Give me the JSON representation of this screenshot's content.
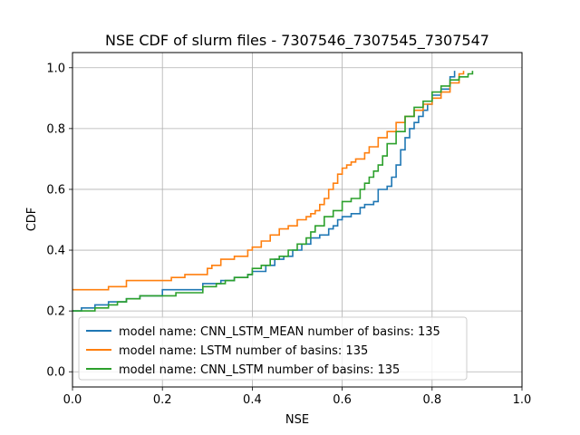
{
  "chart_data": {
    "type": "line",
    "title": "NSE CDF of slurm files - 7307546_7307545_7307547",
    "xlabel": "NSE",
    "ylabel": "CDF",
    "xlim": [
      0.0,
      1.0
    ],
    "ylim": [
      -0.05,
      1.05
    ],
    "xticks": [
      "0.0",
      "0.2",
      "0.4",
      "0.6",
      "0.8",
      "1.0"
    ],
    "yticks": [
      "0.0",
      "0.2",
      "0.4",
      "0.6",
      "0.8",
      "1.0"
    ],
    "grid": true,
    "legend_position": "lower-left",
    "series": [
      {
        "name": "model name: CNN_LSTM_MEAN number of basins: 135",
        "color": "#1f77b4",
        "x": [
          0.0,
          0.02,
          0.05,
          0.08,
          0.12,
          0.15,
          0.2,
          0.25,
          0.29,
          0.33,
          0.36,
          0.39,
          0.4,
          0.43,
          0.45,
          0.47,
          0.49,
          0.51,
          0.53,
          0.55,
          0.57,
          0.58,
          0.59,
          0.6,
          0.62,
          0.64,
          0.65,
          0.67,
          0.68,
          0.7,
          0.71,
          0.72,
          0.73,
          0.74,
          0.75,
          0.76,
          0.77,
          0.78,
          0.79,
          0.8,
          0.82,
          0.84,
          0.85
        ],
        "y": [
          0.2,
          0.21,
          0.22,
          0.23,
          0.24,
          0.25,
          0.27,
          0.27,
          0.29,
          0.3,
          0.31,
          0.32,
          0.33,
          0.35,
          0.37,
          0.38,
          0.4,
          0.42,
          0.44,
          0.45,
          0.47,
          0.48,
          0.5,
          0.51,
          0.52,
          0.54,
          0.55,
          0.56,
          0.6,
          0.61,
          0.64,
          0.68,
          0.73,
          0.77,
          0.8,
          0.82,
          0.84,
          0.86,
          0.88,
          0.91,
          0.93,
          0.97,
          0.99
        ]
      },
      {
        "name": "model name: LSTM number of basins: 135",
        "color": "#ff7f0e",
        "x": [
          0.0,
          0.08,
          0.12,
          0.2,
          0.22,
          0.25,
          0.3,
          0.31,
          0.33,
          0.36,
          0.39,
          0.4,
          0.42,
          0.44,
          0.46,
          0.48,
          0.5,
          0.52,
          0.53,
          0.54,
          0.55,
          0.56,
          0.57,
          0.58,
          0.59,
          0.6,
          0.61,
          0.62,
          0.63,
          0.65,
          0.66,
          0.68,
          0.7,
          0.72,
          0.74,
          0.76,
          0.78,
          0.8,
          0.82,
          0.84,
          0.86,
          0.87
        ],
        "y": [
          0.27,
          0.28,
          0.3,
          0.3,
          0.31,
          0.32,
          0.34,
          0.35,
          0.37,
          0.38,
          0.4,
          0.41,
          0.43,
          0.45,
          0.47,
          0.48,
          0.5,
          0.51,
          0.52,
          0.53,
          0.55,
          0.57,
          0.6,
          0.62,
          0.65,
          0.67,
          0.68,
          0.69,
          0.7,
          0.72,
          0.74,
          0.77,
          0.79,
          0.82,
          0.84,
          0.86,
          0.88,
          0.9,
          0.92,
          0.95,
          0.98,
          0.99
        ]
      },
      {
        "name": "model name: CNN_LSTM number of basins: 135",
        "color": "#2ca02c",
        "x": [
          0.0,
          0.02,
          0.05,
          0.08,
          0.1,
          0.12,
          0.15,
          0.2,
          0.23,
          0.29,
          0.32,
          0.34,
          0.36,
          0.39,
          0.4,
          0.42,
          0.44,
          0.46,
          0.48,
          0.5,
          0.52,
          0.53,
          0.54,
          0.56,
          0.58,
          0.6,
          0.62,
          0.64,
          0.65,
          0.66,
          0.67,
          0.68,
          0.69,
          0.7,
          0.72,
          0.74,
          0.76,
          0.78,
          0.8,
          0.82,
          0.84,
          0.86,
          0.88,
          0.89
        ],
        "y": [
          0.2,
          0.2,
          0.21,
          0.22,
          0.23,
          0.24,
          0.25,
          0.25,
          0.26,
          0.28,
          0.29,
          0.3,
          0.31,
          0.32,
          0.34,
          0.35,
          0.37,
          0.38,
          0.4,
          0.42,
          0.44,
          0.46,
          0.48,
          0.51,
          0.53,
          0.56,
          0.57,
          0.6,
          0.62,
          0.64,
          0.66,
          0.68,
          0.71,
          0.75,
          0.79,
          0.84,
          0.87,
          0.89,
          0.92,
          0.94,
          0.96,
          0.97,
          0.98,
          0.99
        ]
      }
    ]
  }
}
